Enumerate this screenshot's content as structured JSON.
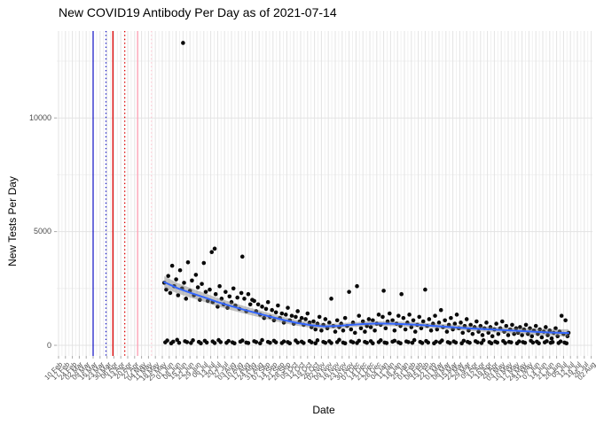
{
  "axes": {
    "y_ticks": [
      "0",
      "5000",
      "10000"
    ],
    "x_tick_labels": [
      "10 Feb",
      "17 Feb",
      "24 Feb",
      "02 Mar",
      "09 Mar",
      "16 Mar",
      "23 Mar",
      "30 Mar",
      "06 Apr",
      "13 Apr",
      "20 Apr",
      "27 Apr",
      "04 May",
      "11 May",
      "18 May",
      "25 May",
      "01 Jun",
      "08 Jun",
      "15 Jun",
      "22 Jun",
      "29 Jun",
      "06 Jul",
      "13 Jul",
      "20 Jul",
      "27 Jul",
      "03 Aug",
      "10 Aug",
      "17 Aug",
      "24 Aug",
      "31 Aug",
      "07 Sep",
      "14 Sep",
      "21 Sep",
      "28 Sep",
      "05 Oct",
      "12 Oct",
      "19 Oct",
      "26 Oct",
      "02 Nov",
      "09 Nov",
      "16 Nov",
      "23 Nov",
      "30 Nov",
      "07 Dec",
      "14 Dec",
      "21 Dec",
      "28 Dec",
      "04 Jan",
      "11 Jan",
      "18 Jan",
      "25 Jan",
      "01 Feb",
      "08 Feb",
      "15 Feb",
      "22 Feb",
      "01 Mar",
      "08 Mar",
      "15 Mar",
      "22 Mar",
      "29 Mar",
      "05 Apr",
      "12 Apr",
      "19 Apr",
      "26 Apr",
      "03 May",
      "10 May",
      "17 May",
      "24 May",
      "31 May",
      "07 Jun",
      "14 Jun",
      "21 Jun",
      "28 Jun",
      "05 Jul",
      "12 Jul",
      "19 Jul",
      "26 Jul",
      "02 Aug"
    ]
  },
  "chart_data": {
    "type": "scatter",
    "title": "New COVID19 Antibody Per Day as of 2021-07-14",
    "xlabel": "Date",
    "ylabel": "New Tests Per Day",
    "x_axis": {
      "start_date": "2020-02-10",
      "end_date": "2021-08-02",
      "tick_interval": "1 week",
      "total_days": 539
    },
    "ylim": [
      -650,
      13900
    ],
    "y_major_breaks": [
      0,
      5000,
      10000
    ],
    "y_minor_breaks": [
      2500,
      7500,
      12500
    ],
    "grid": "on",
    "legend": "none",
    "point_color": "#0a0a0a",
    "smooth": {
      "color": "#3366FF",
      "ribbon_color": "rgba(125,125,125,0.45)",
      "points": [
        [
          107,
          2780
        ],
        [
          120,
          2520
        ],
        [
          134,
          2300
        ],
        [
          148,
          2100
        ],
        [
          161,
          1900
        ],
        [
          175,
          1720
        ],
        [
          188,
          1560
        ],
        [
          202,
          1400
        ],
        [
          215,
          1250
        ],
        [
          229,
          1100
        ],
        [
          242,
          980
        ],
        [
          256,
          880
        ],
        [
          269,
          830
        ],
        [
          283,
          850
        ],
        [
          296,
          900
        ],
        [
          310,
          940
        ],
        [
          323,
          960
        ],
        [
          337,
          950
        ],
        [
          350,
          930
        ],
        [
          364,
          900
        ],
        [
          377,
          860
        ],
        [
          391,
          820
        ],
        [
          404,
          780
        ],
        [
          418,
          740
        ],
        [
          431,
          710
        ],
        [
          445,
          680
        ],
        [
          458,
          650
        ],
        [
          472,
          620
        ],
        [
          485,
          590
        ],
        [
          499,
          560
        ],
        [
          516,
          540
        ]
      ],
      "ci_halfwidth": [
        260,
        230,
        210,
        195,
        185,
        175,
        165,
        155,
        145,
        135,
        125,
        118,
        112,
        110,
        108,
        108,
        108,
        108,
        108,
        108,
        108,
        110,
        112,
        114,
        118,
        122,
        128,
        134,
        142,
        152,
        165
      ]
    },
    "event_vlines": [
      {
        "date": "2020-03-16",
        "day": 35,
        "color": "#1F1FC8",
        "style": "solid"
      },
      {
        "date": "2020-03-29",
        "day": 48,
        "color": "#1F1FC8",
        "style": "dotted"
      },
      {
        "date": "2020-04-05",
        "day": 55,
        "color": "#E00000",
        "style": "solid"
      },
      {
        "date": "2020-04-17",
        "day": 67,
        "color": "#E00000",
        "style": "dotted"
      },
      {
        "date": "2020-04-30",
        "day": 80,
        "color": "#FF9FB4",
        "style": "solid"
      },
      {
        "date": "2020-05-14",
        "day": 94,
        "color": "#FFC9D4",
        "style": "dotted"
      }
    ],
    "points_day_value": [
      [
        107,
        2750
      ],
      [
        109,
        2450
      ],
      [
        111,
        3050
      ],
      [
        113,
        2300
      ],
      [
        115,
        3500
      ],
      [
        117,
        2600
      ],
      [
        119,
        2900
      ],
      [
        121,
        2200
      ],
      [
        123,
        3300
      ],
      [
        125,
        2500
      ],
      [
        126,
        13300
      ],
      [
        127,
        2750
      ],
      [
        129,
        2050
      ],
      [
        131,
        3650
      ],
      [
        133,
        2400
      ],
      [
        135,
        2850
      ],
      [
        137,
        2200
      ],
      [
        139,
        3100
      ],
      [
        141,
        2550
      ],
      [
        143,
        2000
      ],
      [
        145,
        2700
      ],
      [
        147,
        3620
      ],
      [
        149,
        2350
      ],
      [
        151,
        1950
      ],
      [
        153,
        2450
      ],
      [
        155,
        4100
      ],
      [
        156,
        1900
      ],
      [
        158,
        4250
      ],
      [
        159,
        2250
      ],
      [
        161,
        1700
      ],
      [
        163,
        2600
      ],
      [
        165,
        2050
      ],
      [
        167,
        1800
      ],
      [
        169,
        2350
      ],
      [
        171,
        1650
      ],
      [
        173,
        2150
      ],
      [
        175,
        1900
      ],
      [
        177,
        2500
      ],
      [
        179,
        1750
      ],
      [
        181,
        2100
      ],
      [
        183,
        1600
      ],
      [
        185,
        2300
      ],
      [
        186,
        3900
      ],
      [
        188,
        2050
      ],
      [
        190,
        1500
      ],
      [
        192,
        2250
      ],
      [
        194,
        1800
      ],
      [
        196,
        2000
      ],
      [
        198,
        1950
      ],
      [
        200,
        1500
      ],
      [
        202,
        1800
      ],
      [
        204,
        1350
      ],
      [
        206,
        1700
      ],
      [
        208,
        1200
      ],
      [
        210,
        1600
      ],
      [
        212,
        1900
      ],
      [
        214,
        1250
      ],
      [
        216,
        1550
      ],
      [
        218,
        1100
      ],
      [
        220,
        1450
      ],
      [
        222,
        1750
      ],
      [
        224,
        1200
      ],
      [
        226,
        1400
      ],
      [
        228,
        1000
      ],
      [
        230,
        1350
      ],
      [
        232,
        1650
      ],
      [
        234,
        1100
      ],
      [
        236,
        1300
      ],
      [
        238,
        950
      ],
      [
        240,
        1250
      ],
      [
        242,
        1500
      ],
      [
        244,
        1050
      ],
      [
        246,
        1200
      ],
      [
        248,
        900
      ],
      [
        250,
        1150
      ],
      [
        252,
        1400
      ],
      [
        254,
        1000
      ],
      [
        256,
        800
      ],
      [
        258,
        1050
      ],
      [
        260,
        700
      ],
      [
        262,
        950
      ],
      [
        264,
        1250
      ],
      [
        266,
        650
      ],
      [
        268,
        900
      ],
      [
        270,
        1150
      ],
      [
        272,
        750
      ],
      [
        274,
        1000
      ],
      [
        276,
        2050
      ],
      [
        278,
        850
      ],
      [
        280,
        600
      ],
      [
        282,
        1100
      ],
      [
        284,
        800
      ],
      [
        286,
        950
      ],
      [
        288,
        650
      ],
      [
        290,
        1200
      ],
      [
        292,
        850
      ],
      [
        294,
        2350
      ],
      [
        296,
        700
      ],
      [
        298,
        1000
      ],
      [
        300,
        550
      ],
      [
        302,
        2600
      ],
      [
        304,
        1300
      ],
      [
        306,
        750
      ],
      [
        308,
        1050
      ],
      [
        310,
        600
      ],
      [
        312,
        850
      ],
      [
        314,
        1150
      ],
      [
        316,
        800
      ],
      [
        318,
        1100
      ],
      [
        320,
        650
      ],
      [
        322,
        950
      ],
      [
        324,
        1350
      ],
      [
        326,
        900
      ],
      [
        328,
        1250
      ],
      [
        329,
        2400
      ],
      [
        331,
        750
      ],
      [
        333,
        1050
      ],
      [
        335,
        1400
      ],
      [
        338,
        1100
      ],
      [
        340,
        650
      ],
      [
        342,
        950
      ],
      [
        344,
        1300
      ],
      [
        346,
        850
      ],
      [
        347,
        2250
      ],
      [
        349,
        1200
      ],
      [
        351,
        700
      ],
      [
        353,
        1000
      ],
      [
        355,
        1350
      ],
      [
        357,
        800
      ],
      [
        359,
        1100
      ],
      [
        361,
        600
      ],
      [
        363,
        900
      ],
      [
        365,
        1250
      ],
      [
        367,
        750
      ],
      [
        369,
        1050
      ],
      [
        371,
        2450
      ],
      [
        373,
        850
      ],
      [
        375,
        1150
      ],
      [
        377,
        650
      ],
      [
        379,
        950
      ],
      [
        381,
        1300
      ],
      [
        383,
        700
      ],
      [
        385,
        1000
      ],
      [
        387,
        1550
      ],
      [
        389,
        800
      ],
      [
        391,
        1100
      ],
      [
        393,
        600
      ],
      [
        395,
        900
      ],
      [
        397,
        1200
      ],
      [
        399,
        700
      ],
      [
        401,
        950
      ],
      [
        403,
        1350
      ],
      [
        405,
        750
      ],
      [
        407,
        1000
      ],
      [
        409,
        550
      ],
      [
        411,
        850
      ],
      [
        413,
        1150
      ],
      [
        415,
        650
      ],
      [
        417,
        900
      ],
      [
        419,
        500
      ],
      [
        421,
        800
      ],
      [
        423,
        1050
      ],
      [
        425,
        600
      ],
      [
        427,
        850
      ],
      [
        429,
        450
      ],
      [
        431,
        750
      ],
      [
        433,
        1000
      ],
      [
        435,
        550
      ],
      [
        437,
        800
      ],
      [
        439,
        400
      ],
      [
        441,
        700
      ],
      [
        443,
        950
      ],
      [
        445,
        500
      ],
      [
        447,
        750
      ],
      [
        449,
        1050
      ],
      [
        451,
        600
      ],
      [
        453,
        850
      ],
      [
        455,
        450
      ],
      [
        457,
        700
      ],
      [
        459,
        900
      ],
      [
        461,
        500
      ],
      [
        463,
        750
      ],
      [
        465,
        550
      ],
      [
        467,
        800
      ],
      [
        469,
        450
      ],
      [
        471,
        700
      ],
      [
        473,
        900
      ],
      [
        475,
        500
      ],
      [
        477,
        750
      ],
      [
        479,
        400
      ],
      [
        481,
        650
      ],
      [
        483,
        850
      ],
      [
        485,
        500
      ],
      [
        487,
        700
      ],
      [
        489,
        350
      ],
      [
        491,
        600
      ],
      [
        493,
        800
      ],
      [
        495,
        450
      ],
      [
        497,
        650
      ],
      [
        499,
        300
      ],
      [
        501,
        550
      ],
      [
        503,
        750
      ],
      [
        505,
        400
      ],
      [
        507,
        600
      ],
      [
        509,
        1300
      ],
      [
        511,
        500
      ],
      [
        513,
        1100
      ],
      [
        515,
        400
      ],
      [
        516,
        550
      ],
      [
        108,
        130
      ],
      [
        110,
        210
      ],
      [
        114,
        90
      ],
      [
        116,
        160
      ],
      [
        120,
        240
      ],
      [
        122,
        110
      ],
      [
        128,
        180
      ],
      [
        130,
        140
      ],
      [
        134,
        100
      ],
      [
        136,
        220
      ],
      [
        142,
        150
      ],
      [
        144,
        90
      ],
      [
        148,
        200
      ],
      [
        150,
        120
      ],
      [
        156,
        170
      ],
      [
        158,
        100
      ],
      [
        162,
        230
      ],
      [
        164,
        140
      ],
      [
        170,
        110
      ],
      [
        172,
        190
      ],
      [
        176,
        130
      ],
      [
        178,
        90
      ],
      [
        184,
        160
      ],
      [
        186,
        210
      ],
      [
        190,
        120
      ],
      [
        192,
        100
      ],
      [
        198,
        180
      ],
      [
        200,
        140
      ],
      [
        204,
        90
      ],
      [
        206,
        230
      ],
      [
        212,
        150
      ],
      [
        214,
        110
      ],
      [
        218,
        200
      ],
      [
        220,
        130
      ],
      [
        226,
        100
      ],
      [
        228,
        170
      ],
      [
        232,
        140
      ],
      [
        234,
        90
      ],
      [
        240,
        210
      ],
      [
        242,
        120
      ],
      [
        246,
        160
      ],
      [
        248,
        100
      ],
      [
        254,
        190
      ],
      [
        256,
        130
      ],
      [
        260,
        90
      ],
      [
        262,
        220
      ],
      [
        268,
        150
      ],
      [
        270,
        110
      ],
      [
        274,
        180
      ],
      [
        276,
        100
      ],
      [
        282,
        140
      ],
      [
        284,
        240
      ],
      [
        288,
        120
      ],
      [
        290,
        90
      ],
      [
        296,
        170
      ],
      [
        298,
        130
      ],
      [
        302,
        100
      ],
      [
        304,
        200
      ],
      [
        310,
        150
      ],
      [
        312,
        110
      ],
      [
        316,
        180
      ],
      [
        318,
        90
      ],
      [
        324,
        140
      ],
      [
        326,
        220
      ],
      [
        330,
        120
      ],
      [
        332,
        100
      ],
      [
        338,
        160
      ],
      [
        340,
        200
      ],
      [
        344,
        130
      ],
      [
        346,
        90
      ],
      [
        352,
        170
      ],
      [
        354,
        140
      ],
      [
        358,
        110
      ],
      [
        360,
        230
      ],
      [
        366,
        150
      ],
      [
        368,
        100
      ],
      [
        372,
        190
      ],
      [
        374,
        120
      ],
      [
        380,
        90
      ],
      [
        382,
        160
      ],
      [
        386,
        130
      ],
      [
        388,
        210
      ],
      [
        394,
        140
      ],
      [
        396,
        100
      ],
      [
        400,
        170
      ],
      [
        402,
        120
      ],
      [
        408,
        90
      ],
      [
        410,
        200
      ],
      [
        414,
        150
      ],
      [
        416,
        110
      ],
      [
        422,
        180
      ],
      [
        424,
        130
      ],
      [
        428,
        100
      ],
      [
        430,
        220
      ],
      [
        436,
        140
      ],
      [
        438,
        90
      ],
      [
        442,
        160
      ],
      [
        444,
        120
      ],
      [
        450,
        190
      ],
      [
        452,
        100
      ],
      [
        456,
        150
      ],
      [
        458,
        130
      ],
      [
        464,
        90
      ],
      [
        466,
        170
      ],
      [
        470,
        140
      ],
      [
        472,
        110
      ],
      [
        478,
        200
      ],
      [
        480,
        120
      ],
      [
        484,
        160
      ],
      [
        486,
        90
      ],
      [
        492,
        130
      ],
      [
        494,
        180
      ],
      [
        498,
        110
      ],
      [
        500,
        140
      ],
      [
        506,
        100
      ],
      [
        508,
        170
      ],
      [
        512,
        120
      ],
      [
        514,
        90
      ]
    ]
  }
}
